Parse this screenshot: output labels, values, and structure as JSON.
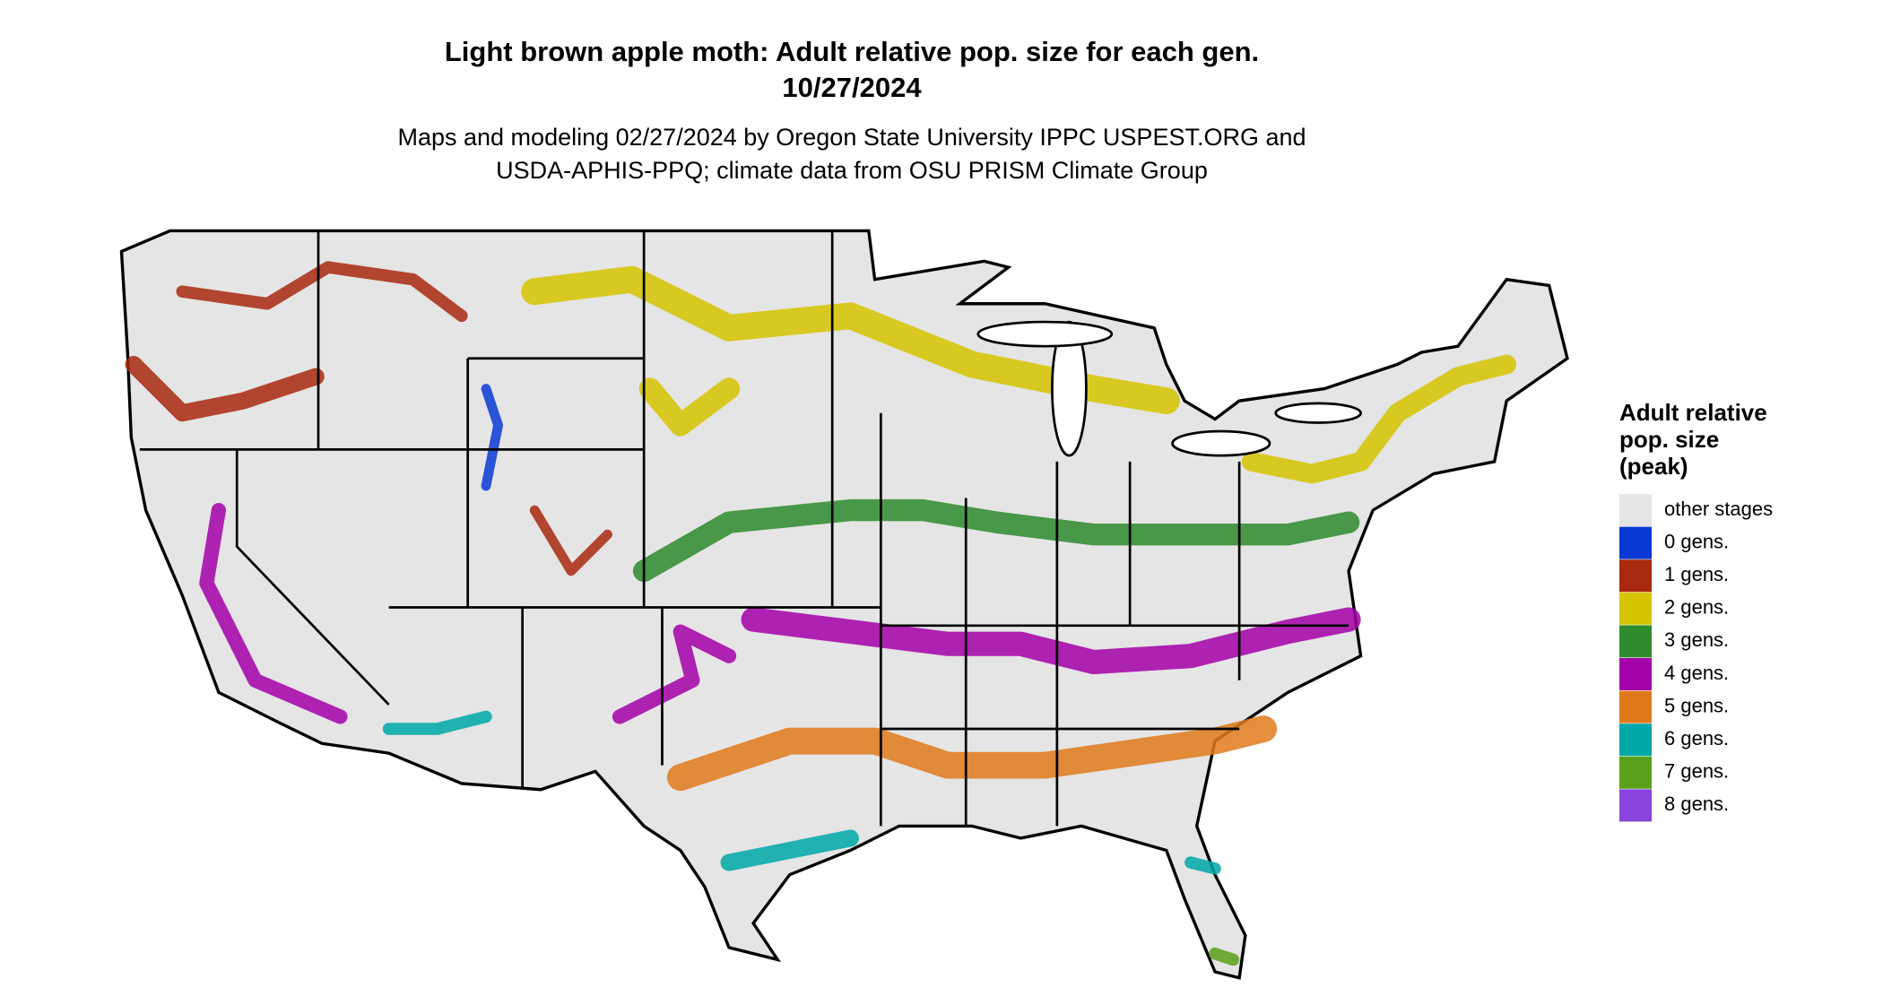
{
  "title": [
    "Light brown apple moth: Adult relative pop. size for each gen.",
    "10/27/2024"
  ],
  "subtitle": [
    "Maps and modeling 02/27/2024 by Oregon State University IPPC USPEST.ORG and",
    "USDA-APHIS-PPQ; climate data from OSU PRISM Climate Group"
  ],
  "legend": {
    "title": [
      "Adult relative",
      "pop. size",
      "(peak)"
    ],
    "items": [
      {
        "label": "other stages",
        "color": "#e5e5e5"
      },
      {
        "label": "0 gens.",
        "color": "#0a3ad6"
      },
      {
        "label": "1 gens.",
        "color": "#a8290f"
      },
      {
        "label": "2 gens.",
        "color": "#d6c400"
      },
      {
        "label": "3 gens.",
        "color": "#2e8b2e"
      },
      {
        "label": "4 gens.",
        "color": "#a300a8"
      },
      {
        "label": "5 gens.",
        "color": "#df7a1c"
      },
      {
        "label": "6 gens.",
        "color": "#00a8a8"
      },
      {
        "label": "7 gens.",
        "color": "#5aa01a"
      },
      {
        "label": "8 gens.",
        "color": "#8844dd"
      }
    ]
  }
}
